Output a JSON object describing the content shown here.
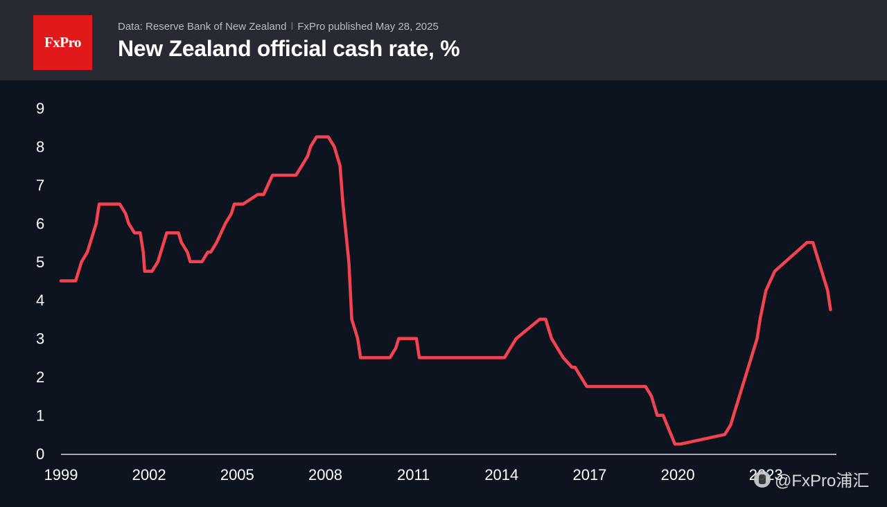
{
  "header": {
    "logo_text": "FxPro",
    "source": "Data: Reserve Bank of New Zealand",
    "separator": "ǀ",
    "published": "FxPro published May 28, 2025",
    "title": "New Zealand official cash rate, %"
  },
  "watermark": {
    "text": "@FxPro浦汇",
    "icon": "social-app-icon"
  },
  "colors": {
    "header_bg": "#282a33",
    "plot_bg": "#0d1420",
    "line": "#f2434e",
    "logo_bg": "#e2191b"
  },
  "chart_data": {
    "type": "line",
    "title": "New Zealand official cash rate, %",
    "xlabel": "",
    "ylabel": "",
    "xlim": [
      1999.0,
      2025.4
    ],
    "ylim": [
      0,
      9
    ],
    "grid": false,
    "legend": "none",
    "x_ticks": [
      1999,
      2002,
      2005,
      2008,
      2011,
      2014,
      2017,
      2020,
      2023
    ],
    "y_ticks": [
      0,
      1,
      2,
      3,
      4,
      5,
      6,
      7,
      8,
      9
    ],
    "series": [
      {
        "name": "",
        "x": [
          1999.0,
          1999.5,
          1999.7,
          1999.9,
          2000.2,
          2000.3,
          2001.0,
          2001.2,
          2001.3,
          2001.5,
          2001.7,
          2001.8,
          2001.85,
          2002.1,
          2002.3,
          2002.6,
          2003.0,
          2003.1,
          2003.3,
          2003.4,
          2003.8,
          2004.0,
          2004.1,
          2004.3,
          2004.6,
          2004.8,
          2004.9,
          2005.2,
          2005.7,
          2005.9,
          2006.2,
          2007.0,
          2007.2,
          2007.4,
          2007.5,
          2007.7,
          2008.1,
          2008.3,
          2008.5,
          2008.6,
          2008.8,
          2008.9,
          2009.1,
          2009.2,
          2010.2,
          2010.4,
          2010.5,
          2011.1,
          2011.2,
          2014.1,
          2014.3,
          2014.5,
          2015.3,
          2015.5,
          2015.6,
          2015.7,
          2015.9,
          2016.1,
          2016.4,
          2016.5,
          2016.7,
          2016.9,
          2018.9,
          2019.1,
          2019.3,
          2019.5,
          2019.9,
          2020.1,
          2021.6,
          2021.8,
          2021.9,
          2022.1,
          2022.3,
          2022.5,
          2022.7,
          2022.8,
          2023.0,
          2023.3,
          2024.4,
          2024.6,
          2024.7,
          2024.9,
          2025.1,
          2025.2
        ],
        "values": [
          4.5,
          4.5,
          5.0,
          5.25,
          6.0,
          6.5,
          6.5,
          6.25,
          6.0,
          5.75,
          5.75,
          5.25,
          4.75,
          4.75,
          5.0,
          5.75,
          5.75,
          5.5,
          5.25,
          5.0,
          5.0,
          5.25,
          5.25,
          5.5,
          6.0,
          6.25,
          6.5,
          6.5,
          6.75,
          6.75,
          7.25,
          7.25,
          7.5,
          7.75,
          8.0,
          8.25,
          8.25,
          8.0,
          7.5,
          6.5,
          5.0,
          3.5,
          3.0,
          2.5,
          2.5,
          2.75,
          3.0,
          3.0,
          2.5,
          2.5,
          2.75,
          3.0,
          3.5,
          3.5,
          3.25,
          3.0,
          2.75,
          2.5,
          2.25,
          2.25,
          2.0,
          1.75,
          1.75,
          1.5,
          1.0,
          1.0,
          0.25,
          0.25,
          0.5,
          0.75,
          1.0,
          1.5,
          2.0,
          2.5,
          3.0,
          3.5,
          4.25,
          4.75,
          5.5,
          5.5,
          5.25,
          4.75,
          4.25,
          3.75
        ]
      }
    ]
  }
}
